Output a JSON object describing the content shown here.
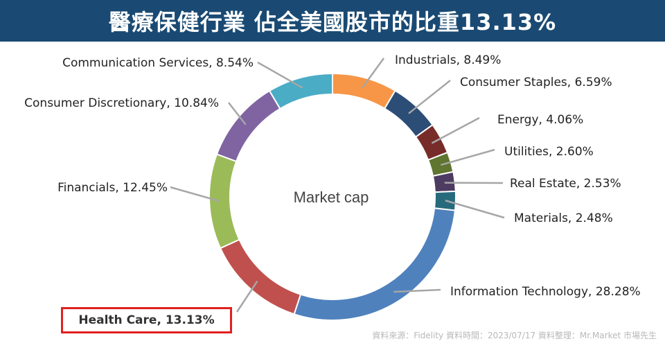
{
  "title": "醫療保健行業 佔全美國股市的比重13.13%",
  "source": "資料來源：Fidelity  資料時間：2023/07/17  資料整理：Mr.Market 市場先生",
  "chart_data": {
    "type": "pie",
    "donut": true,
    "center_label": "Market cap",
    "highlight": "Health Care, 13.13%",
    "slices": [
      {
        "name": "Industrials",
        "value": 8.49,
        "label": "Industrials, 8.49%",
        "color": "#f79646"
      },
      {
        "name": "Consumer Staples",
        "value": 6.59,
        "label": "Consumer Staples, 6.59%",
        "color": "#2c4d75"
      },
      {
        "name": "Energy",
        "value": 4.06,
        "label": "Energy, 4.06%",
        "color": "#772c2a"
      },
      {
        "name": "Utilities",
        "value": 2.6,
        "label": "Utilities, 2.60%",
        "color": "#5f7530"
      },
      {
        "name": "Real Estate",
        "value": 2.53,
        "label": "Real Estate, 2.53%",
        "color": "#4d3b62"
      },
      {
        "name": "Materials",
        "value": 2.48,
        "label": "Materials, 2.48%",
        "color": "#276a7c"
      },
      {
        "name": "Information Technology",
        "value": 28.28,
        "label": "Information Technology, 28.28%",
        "color": "#4f81bd"
      },
      {
        "name": "Health Care",
        "value": 13.13,
        "label": "Health Care, 13.13%",
        "color": "#c0504d"
      },
      {
        "name": "Financials",
        "value": 12.45,
        "label": "Financials, 12.45%",
        "color": "#9bbb59"
      },
      {
        "name": "Consumer Discretionary",
        "value": 10.84,
        "label": "Consumer Discretionary, 10.84%",
        "color": "#8064a2"
      },
      {
        "name": "Communication Services",
        "value": 8.54,
        "label": "Communication Services, 8.54%",
        "color": "#4bacc6"
      }
    ]
  }
}
